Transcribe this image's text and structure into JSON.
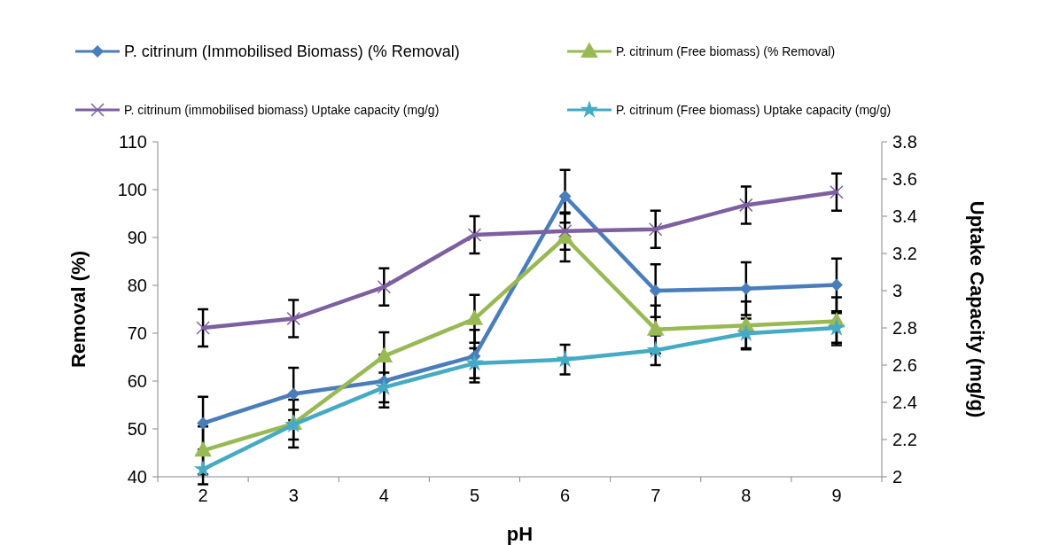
{
  "chart_data": {
    "type": "line",
    "xlabel": "pH",
    "ylabel": "Removal (%)",
    "y2label": "Uptake Capacity (mg/g)",
    "categories": [
      "2",
      "3",
      "4",
      "5",
      "6",
      "7",
      "8",
      "9"
    ],
    "ylim": [
      40,
      110
    ],
    "yticks": [
      40,
      50,
      60,
      70,
      80,
      90,
      100,
      110
    ],
    "y2lim": [
      2,
      3.8
    ],
    "y2ticks": [
      {
        "value": 2,
        "label": "2"
      },
      {
        "value": 2.2,
        "label": "2.2"
      },
      {
        "value": 2.4,
        "label": "2.4"
      },
      {
        "value": 2.6,
        "label": "2.6"
      },
      {
        "value": 2.8,
        "label": "2.8"
      },
      {
        "value": 3,
        "label": "3"
      },
      {
        "value": 3.2,
        "label": "3.2"
      },
      {
        "value": 3.4,
        "label": "3.4"
      },
      {
        "value": 3.6,
        "label": "3.6"
      },
      {
        "value": 3.8,
        "label": "3.8"
      }
    ],
    "grid": false,
    "legend": "top",
    "series": [
      {
        "name": "P. citrinum  (Immobilised Biomass) (% Removal)",
        "color": "#4a7ebb",
        "marker": "diamond",
        "values": [
          51.2,
          57.3,
          60,
          65.2,
          98.6,
          78.9,
          79.3,
          80.1
        ],
        "errors": [
          5.5,
          5.5,
          5.5,
          5.5,
          5.5,
          5.5,
          5.5,
          5.5
        ]
      },
      {
        "name": "P. citrinum (Free biomass)  (% Removal)",
        "color": "#98b954",
        "marker": "triangle",
        "values": [
          45.5,
          51.1,
          65.2,
          73,
          90,
          70.8,
          71.6,
          72.5
        ],
        "errors": [
          5,
          5,
          5,
          5,
          5,
          5,
          5,
          5
        ]
      },
      {
        "name": "P. citrinum  (immobilised  biomass) Uptake capacity (mg/g)",
        "color": "#7d60a0",
        "marker": "cross",
        "axis": "y2",
        "values": [
          2.8,
          2.85,
          3.02,
          3.3,
          3.32,
          3.33,
          3.46,
          3.53
        ],
        "errors": [
          0.1,
          0.1,
          0.1,
          0.1,
          0.1,
          0.1,
          0.1,
          0.1
        ]
      },
      {
        "name": "P. citrinum  (Free biomass) Uptake capacity (mg/g)",
        "color": "#46aac5",
        "marker": "star",
        "axis": "y2",
        "values": [
          2.04,
          2.28,
          2.48,
          2.61,
          2.63,
          2.68,
          2.77,
          2.8
        ],
        "errors": [
          0.08,
          0.08,
          0.08,
          0.08,
          0.08,
          0.08,
          0.08,
          0.08
        ]
      }
    ]
  }
}
